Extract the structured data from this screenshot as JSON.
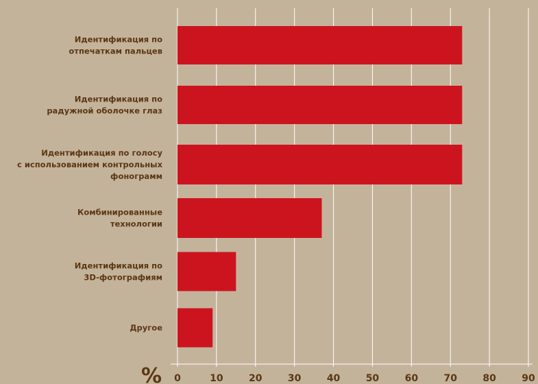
{
  "chart_data": {
    "type": "bar",
    "orientation": "horizontal",
    "unit_label": "%",
    "categories": [
      [
        "Идентификация по",
        "отпечаткам пальцев"
      ],
      [
        "Идентификация по",
        "радужной оболочке глаз"
      ],
      [
        "Идентификация по голосу",
        "с использованием контрольных",
        "фонограмм"
      ],
      [
        "Комбинированные",
        "технологии"
      ],
      [
        "Идентификация по",
        "3D-фотографиям"
      ],
      [
        "Другое"
      ]
    ],
    "values": [
      73,
      73,
      73,
      37,
      15,
      9
    ],
    "xlim": [
      0,
      90
    ],
    "x_ticks": [
      "0",
      "10",
      "20",
      "30",
      "40",
      "50",
      "60",
      "70",
      "80",
      "90"
    ],
    "grid": "vertical",
    "colors": {
      "background": "#c4b39b",
      "bar": "#cc141f",
      "grid": "#ffffff",
      "text": "#5b3713"
    }
  }
}
